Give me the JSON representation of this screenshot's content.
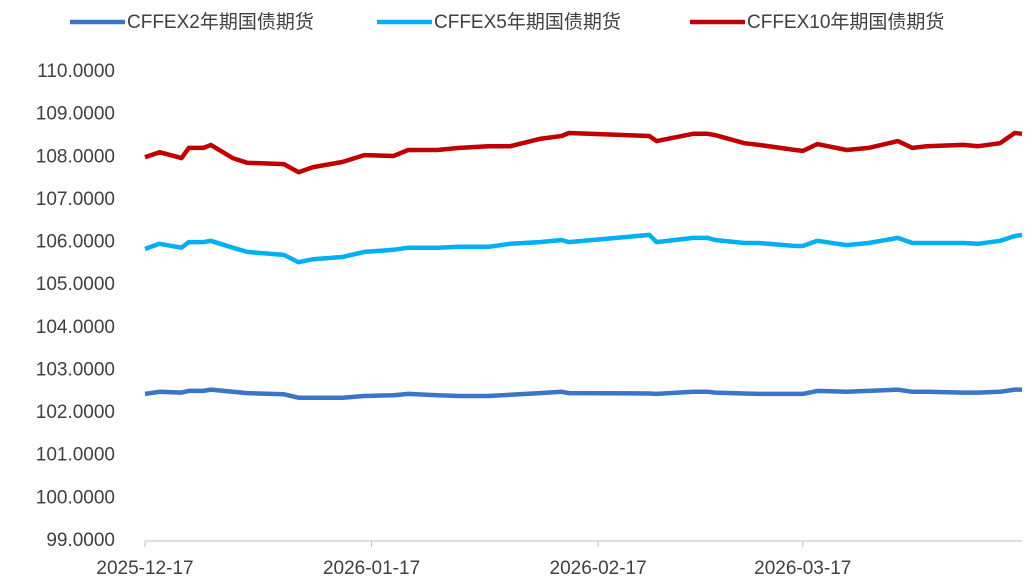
{
  "chart_data": {
    "type": "line",
    "x": [
      "2025-12-17",
      "2025-12-19",
      "2025-12-22",
      "2025-12-23",
      "2025-12-25",
      "2025-12-26",
      "2025-12-29",
      "2025-12-31",
      "2026-01-05",
      "2026-01-07",
      "2026-01-09",
      "2026-01-13",
      "2026-01-16",
      "2026-01-20",
      "2026-01-22",
      "2026-01-26",
      "2026-01-29",
      "2026-02-02",
      "2026-02-05",
      "2026-02-09",
      "2026-02-12",
      "2026-02-13",
      "2026-02-24",
      "2026-02-25",
      "2026-03-02",
      "2026-03-04",
      "2026-03-05",
      "2026-03-09",
      "2026-03-11",
      "2026-03-16",
      "2026-03-17",
      "2026-03-19",
      "2026-03-23",
      "2026-03-26",
      "2026-03-30",
      "2026-04-01",
      "2026-04-03",
      "2026-04-08",
      "2026-04-10",
      "2026-04-13",
      "2026-04-15",
      "2026-04-16"
    ],
    "series": [
      {
        "name": "CFFEX2年期国债期货",
        "color": "#3a75c8",
        "values": [
          102.45,
          102.5,
          102.48,
          102.52,
          102.52,
          102.55,
          102.5,
          102.47,
          102.44,
          102.36,
          102.36,
          102.36,
          102.4,
          102.42,
          102.45,
          102.42,
          102.4,
          102.4,
          102.43,
          102.47,
          102.5,
          102.47,
          102.46,
          102.45,
          102.5,
          102.5,
          102.48,
          102.46,
          102.45,
          102.45,
          102.45,
          102.52,
          102.5,
          102.52,
          102.55,
          102.5,
          102.5,
          102.48,
          102.48,
          102.5,
          102.55,
          102.55
        ]
      },
      {
        "name": "CFFEX5年期国债期货",
        "color": "#00b0f0",
        "values": [
          105.85,
          105.97,
          105.88,
          106.01,
          106.01,
          106.04,
          105.88,
          105.78,
          105.71,
          105.54,
          105.61,
          105.66,
          105.78,
          105.83,
          105.88,
          105.88,
          105.9,
          105.9,
          105.97,
          106.01,
          106.06,
          106.01,
          106.18,
          106.01,
          106.11,
          106.11,
          106.06,
          105.99,
          105.99,
          105.92,
          105.92,
          106.04,
          105.94,
          105.99,
          106.11,
          105.99,
          105.99,
          105.99,
          105.97,
          106.04,
          106.15,
          106.18
        ]
      },
      {
        "name": "CFFEX10年期国债期货",
        "color": "#c00000",
        "values": [
          108.0,
          108.12,
          107.98,
          108.22,
          108.22,
          108.29,
          107.98,
          107.87,
          107.84,
          107.65,
          107.77,
          107.89,
          108.05,
          108.03,
          108.17,
          108.17,
          108.22,
          108.26,
          108.26,
          108.43,
          108.5,
          108.57,
          108.5,
          108.38,
          108.55,
          108.55,
          108.52,
          108.33,
          108.29,
          108.17,
          108.15,
          108.31,
          108.17,
          108.22,
          108.38,
          108.22,
          108.26,
          108.29,
          108.26,
          108.33,
          108.57,
          108.55
        ]
      }
    ],
    "xlim": [
      "2025-12-17",
      "2026-04-16"
    ],
    "xticks": [
      "2025-12-17",
      "2026-01-17",
      "2026-02-17",
      "2026-03-17"
    ],
    "ylim": [
      99,
      110
    ],
    "yticks": [
      {
        "value": 99,
        "label": "99.0000"
      },
      {
        "value": 100,
        "label": "100.0000"
      },
      {
        "value": 101,
        "label": "101.0000"
      },
      {
        "value": 102,
        "label": "102.0000"
      },
      {
        "value": 103,
        "label": "103.0000"
      },
      {
        "value": 104,
        "label": "104.0000"
      },
      {
        "value": 105,
        "label": "105.0000"
      },
      {
        "value": 106,
        "label": "106.0000"
      },
      {
        "value": 107,
        "label": "107.0000"
      },
      {
        "value": 108,
        "label": "108.0000"
      },
      {
        "value": 109,
        "label": "109.0000"
      },
      {
        "value": 110,
        "label": "110.0000"
      }
    ],
    "grid": false
  }
}
